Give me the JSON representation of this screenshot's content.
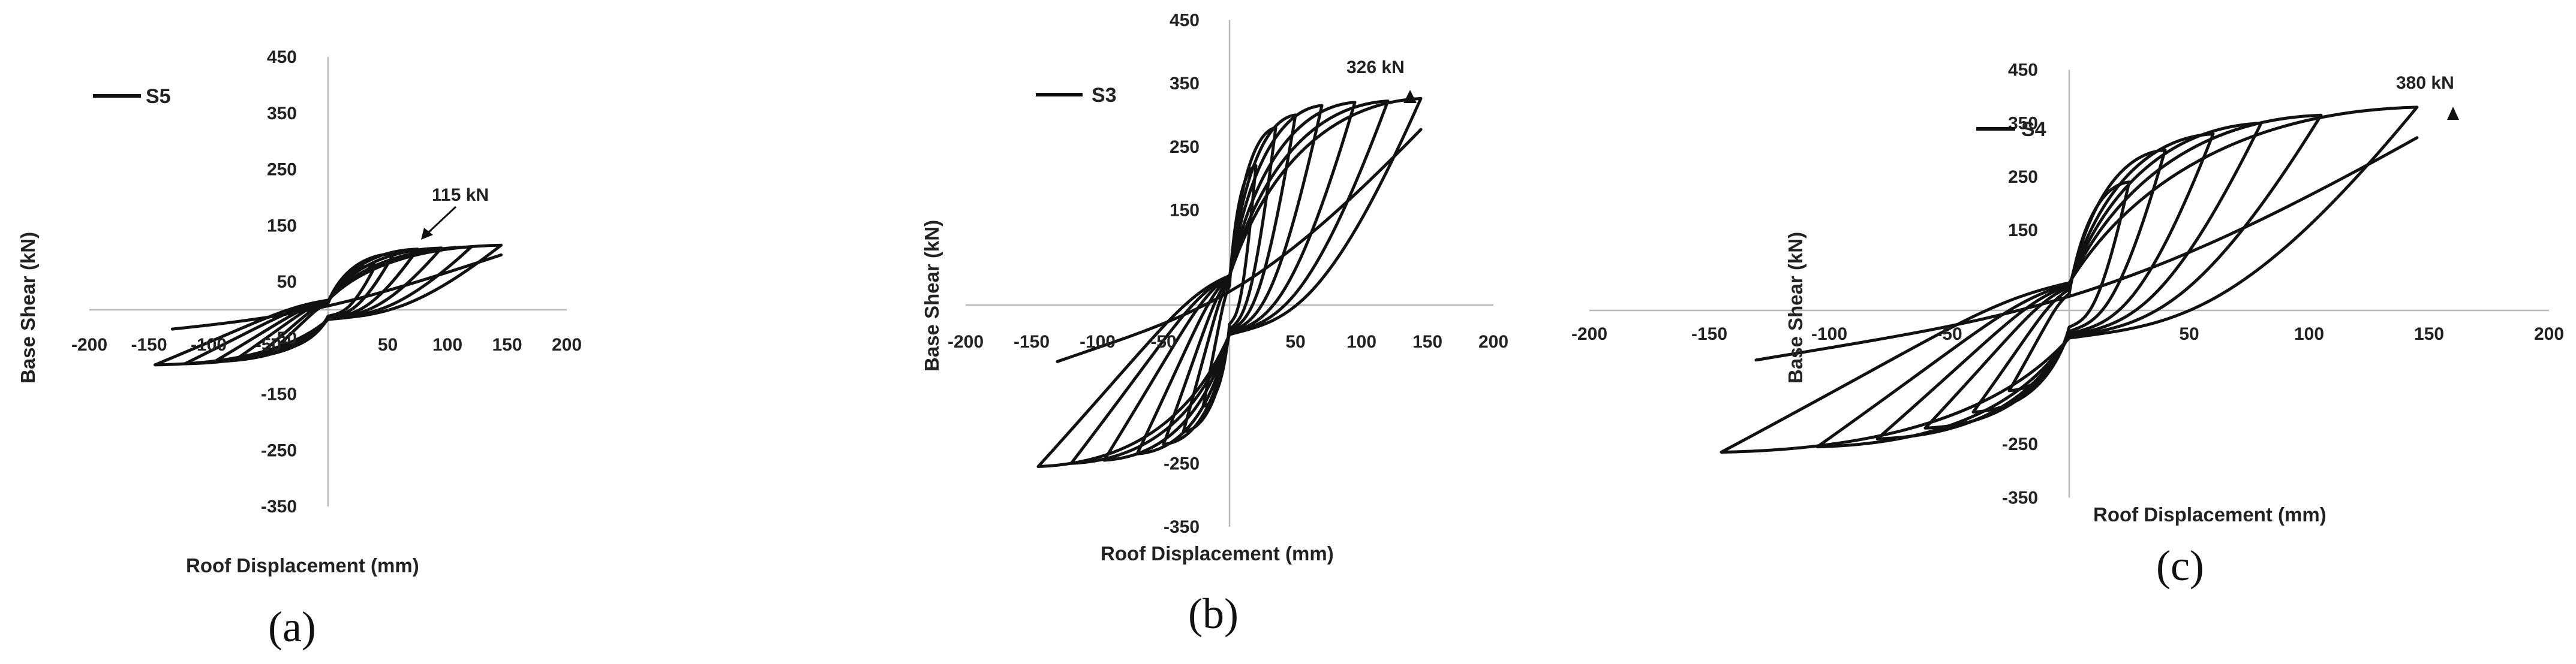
{
  "chart_data": [
    {
      "type": "line",
      "caption": "(a)",
      "legend": "S5",
      "annotation": "115 kN",
      "xlabel": "Roof Displacement (mm)",
      "ylabel": "Base Shear (kN)",
      "xlim": [
        -200,
        200
      ],
      "ylim": [
        -350,
        450
      ],
      "xticks": [
        -200,
        -150,
        -100,
        -50,
        50,
        100,
        150,
        200
      ],
      "yticks": [
        450,
        350,
        250,
        150,
        50,
        -50,
        -150,
        -250,
        -350
      ],
      "peak": {
        "x": 145,
        "y": 115
      },
      "cycles": [
        {
          "amp": 40,
          "pos": 80,
          "neg": -60
        },
        {
          "amp": 55,
          "pos": 100,
          "neg": -75
        },
        {
          "amp": 75,
          "pos": 108,
          "neg": -85
        },
        {
          "amp": 95,
          "pos": 110,
          "neg": -92
        },
        {
          "amp": 120,
          "pos": 112,
          "neg": -96
        },
        {
          "amp": 145,
          "pos": 115,
          "neg": -98
        }
      ]
    },
    {
      "type": "line",
      "caption": "(b)",
      "legend": "S3",
      "annotation": "326 kN",
      "xlabel": "Roof Displacement (mm)",
      "ylabel": "Base Shear (kN)",
      "xlim": [
        -200,
        200
      ],
      "ylim": [
        -350,
        450
      ],
      "xticks": [
        -200,
        -150,
        -100,
        -50,
        50,
        100,
        150,
        200
      ],
      "yticks": [
        450,
        350,
        250,
        150,
        -250,
        -350
      ],
      "peak": {
        "x": 145,
        "y": 326
      },
      "cycles": [
        {
          "amp": 20,
          "pos": 220,
          "neg": -160
        },
        {
          "amp": 35,
          "pos": 280,
          "neg": -200
        },
        {
          "amp": 50,
          "pos": 300,
          "neg": -220
        },
        {
          "amp": 70,
          "pos": 315,
          "neg": -235
        },
        {
          "amp": 95,
          "pos": 320,
          "neg": -245
        },
        {
          "amp": 120,
          "pos": 322,
          "neg": -250
        },
        {
          "amp": 145,
          "pos": 326,
          "neg": -255
        }
      ]
    },
    {
      "type": "line",
      "caption": "(c)",
      "legend": "S4",
      "annotation": "380 kN",
      "xlabel": "Roof Displacement (mm)",
      "ylabel": "Base Shear (kN)",
      "xlim": [
        -200,
        200
      ],
      "ylim": [
        -350,
        450
      ],
      "xticks": [
        -200,
        -150,
        -100,
        -50,
        50,
        100,
        150,
        200
      ],
      "yticks": [
        450,
        350,
        250,
        150,
        -250,
        -350
      ],
      "peak": {
        "x": 145,
        "y": 380
      },
      "cycles": [
        {
          "amp": 25,
          "pos": 240,
          "neg": -150
        },
        {
          "amp": 40,
          "pos": 300,
          "neg": -190
        },
        {
          "amp": 60,
          "pos": 330,
          "neg": -220
        },
        {
          "amp": 80,
          "pos": 350,
          "neg": -240
        },
        {
          "amp": 105,
          "pos": 365,
          "neg": -255
        },
        {
          "amp": 145,
          "pos": 380,
          "neg": -265
        }
      ]
    }
  ]
}
